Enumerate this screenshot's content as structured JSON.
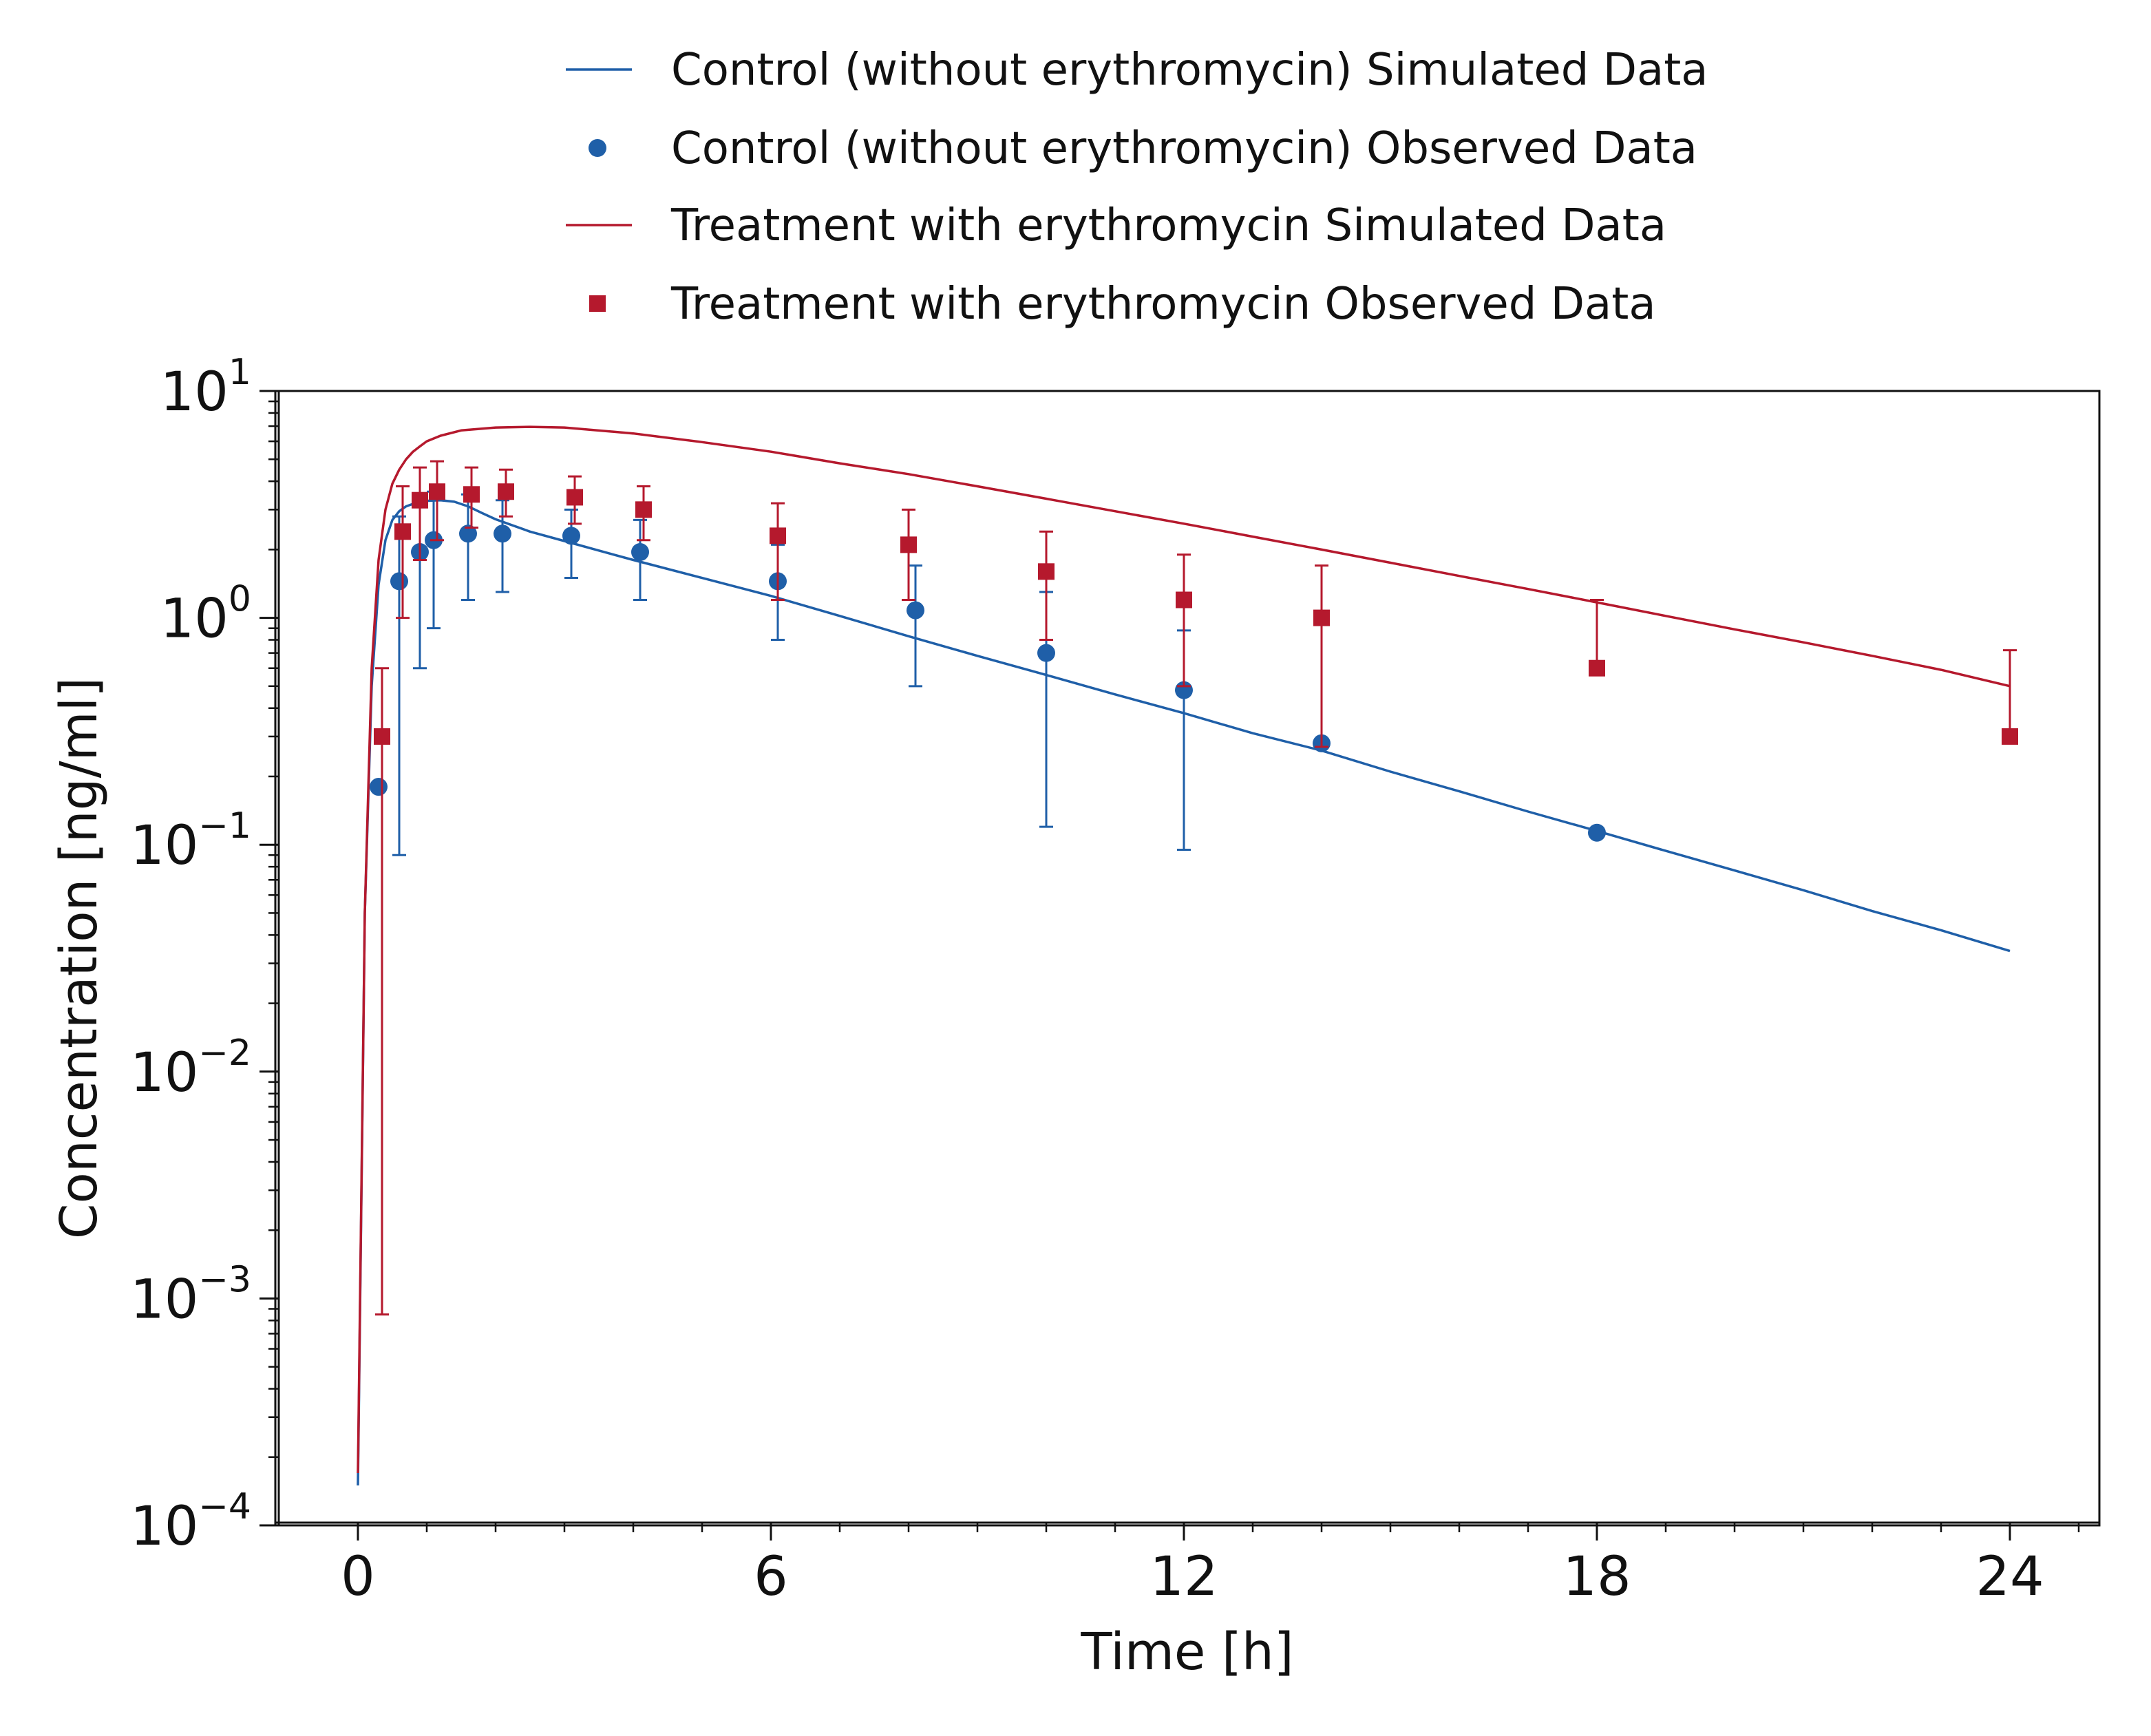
{
  "chart_data": {
    "type": "line",
    "xlabel": "Time [h]",
    "ylabel": "Concentration [ng/ml]",
    "xlim": [
      -1.2,
      25.3
    ],
    "ylim": [
      0.0001,
      10
    ],
    "y_scale": "log",
    "x_ticks": [
      0,
      6,
      12,
      18,
      24
    ],
    "x_tick_labels": [
      "0",
      "6",
      "12",
      "18",
      "24"
    ],
    "y_ticks": [
      0.0001,
      0.001,
      0.01,
      0.1,
      1,
      10
    ],
    "y_tick_labels": [
      {
        "base": "10",
        "exp": "−4"
      },
      {
        "base": "10",
        "exp": "−3"
      },
      {
        "base": "10",
        "exp": "−2"
      },
      {
        "base": "10",
        "exp": "−1"
      },
      {
        "base": "10",
        "exp": "0"
      },
      {
        "base": "10",
        "exp": "1"
      }
    ],
    "grid": false,
    "legend_position": "top-center",
    "colors": {
      "control": "#1f5fa8",
      "treatment": "#b5192d"
    },
    "series": [
      {
        "name": "Control (without erythromycin) Simulated Data",
        "kind": "line",
        "color": "#1f5fa8",
        "x": [
          0.0,
          0.1,
          0.2,
          0.3,
          0.4,
          0.5,
          0.6,
          0.7,
          0.8,
          0.9,
          1.0,
          1.2,
          1.4,
          1.6,
          1.8,
          2.0,
          2.5,
          3.0,
          3.5,
          4.0,
          5.0,
          6.0,
          7.0,
          8.0,
          9.0,
          10.0,
          11.0,
          12.0,
          13.0,
          14.0,
          15.0,
          16.0,
          17.0,
          18.0,
          19.0,
          20.0,
          21.0,
          22.0,
          23.0,
          24.0
        ],
        "y": [
          0.00015,
          0.05,
          0.5,
          1.4,
          2.2,
          2.7,
          2.95,
          3.1,
          3.18,
          3.24,
          3.28,
          3.3,
          3.25,
          3.1,
          2.9,
          2.72,
          2.4,
          2.18,
          1.98,
          1.8,
          1.5,
          1.25,
          1.02,
          0.83,
          0.68,
          0.56,
          0.46,
          0.38,
          0.31,
          0.26,
          0.21,
          0.172,
          0.14,
          0.115,
          0.094,
          0.077,
          0.063,
          0.051,
          0.042,
          0.034
        ]
      },
      {
        "name": "Control (without erythromycin) Observed Data",
        "kind": "scatter",
        "marker": "circle",
        "color": "#1f5fa8",
        "x": [
          0.3,
          0.6,
          0.9,
          1.1,
          1.6,
          2.1,
          3.1,
          4.1,
          6.1,
          8.1,
          10.0,
          12.0,
          14.0,
          18.0
        ],
        "y": [
          0.18,
          1.45,
          1.95,
          2.2,
          2.35,
          2.35,
          2.3,
          1.95,
          1.45,
          1.08,
          0.7,
          0.48,
          0.28,
          0.113
        ],
        "err_low": [
          null,
          0.09,
          0.6,
          0.9,
          1.2,
          1.3,
          1.5,
          1.2,
          0.8,
          0.5,
          0.12,
          0.095,
          null,
          null
        ],
        "err_high": [
          null,
          2.8,
          3.1,
          3.6,
          3.5,
          3.3,
          3.0,
          2.7,
          2.1,
          1.7,
          1.3,
          0.88,
          null,
          null
        ]
      },
      {
        "name": "Treatment with erythromycin Simulated Data",
        "kind": "line",
        "color": "#b5192d",
        "x": [
          0.0,
          0.1,
          0.2,
          0.3,
          0.4,
          0.5,
          0.6,
          0.7,
          0.8,
          0.9,
          1.0,
          1.2,
          1.5,
          2.0,
          2.5,
          3.0,
          4.0,
          5.0,
          6.0,
          7.0,
          8.0,
          9.0,
          10.0,
          11.0,
          12.0,
          13.0,
          14.0,
          15.0,
          16.0,
          17.0,
          18.0,
          19.0,
          20.0,
          21.0,
          22.0,
          23.0,
          24.0
        ],
        "y": [
          0.00017,
          0.05,
          0.6,
          1.8,
          3.0,
          3.9,
          4.5,
          5.0,
          5.4,
          5.7,
          6.0,
          6.35,
          6.7,
          6.9,
          6.95,
          6.9,
          6.5,
          5.95,
          5.4,
          4.8,
          4.3,
          3.8,
          3.35,
          2.95,
          2.6,
          2.28,
          2.0,
          1.75,
          1.53,
          1.34,
          1.17,
          1.02,
          0.89,
          0.78,
          0.68,
          0.59,
          0.5
        ]
      },
      {
        "name": "Treatment with erythromycin Observed Data",
        "kind": "scatter",
        "marker": "square",
        "color": "#b5192d",
        "x": [
          0.35,
          0.65,
          0.9,
          1.15,
          1.65,
          2.15,
          3.15,
          4.15,
          6.1,
          8.0,
          10.0,
          12.0,
          14.0,
          18.0,
          24.0
        ],
        "y": [
          0.3,
          2.4,
          3.3,
          3.6,
          3.5,
          3.6,
          3.4,
          3.0,
          2.3,
          2.1,
          1.6,
          1.2,
          1.0,
          0.6,
          0.3
        ],
        "err_low": [
          0.00085,
          1.0,
          1.8,
          2.2,
          2.5,
          2.8,
          2.6,
          2.2,
          1.2,
          1.2,
          0.8,
          0.5,
          0.27,
          null,
          null
        ],
        "err_high": [
          0.6,
          3.8,
          4.6,
          4.9,
          4.6,
          4.5,
          4.2,
          3.8,
          3.2,
          3.0,
          2.4,
          1.9,
          1.7,
          1.2,
          0.72
        ]
      }
    ]
  }
}
